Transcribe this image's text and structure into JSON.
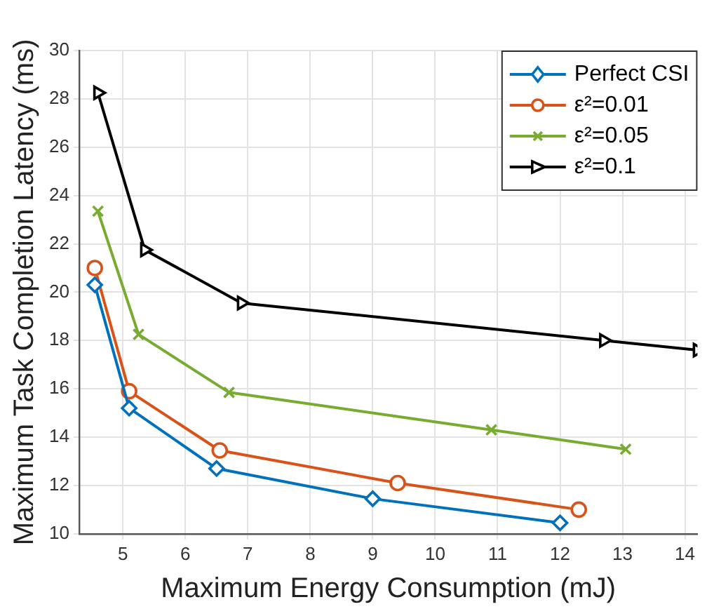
{
  "chart_data": {
    "type": "line",
    "xlabel": "Maximum Energy Consumption (mJ)",
    "ylabel": "Maximum Task Completion Latency (ms)",
    "xlim": [
      4.3,
      14.2
    ],
    "xticks": [
      5,
      6,
      7,
      8,
      9,
      10,
      11,
      12,
      13,
      14
    ],
    "ylim": [
      10,
      30
    ],
    "yticks": [
      10,
      12,
      14,
      16,
      18,
      20,
      22,
      24,
      26,
      28,
      30
    ],
    "grid": true,
    "legend": "top right",
    "line_style": "solid",
    "series": [
      {
        "name": "Perfect CSI",
        "color": "#0072bd",
        "marker": "diamond",
        "x": [
          4.55,
          5.1,
          6.5,
          9,
          12
        ],
        "values": [
          20.3,
          15.2,
          12.7,
          11.45,
          10.45
        ]
      },
      {
        "name": "ε²=0.01",
        "color": "#d95319",
        "marker": "circle",
        "x": [
          4.55,
          5.1,
          6.55,
          9.4,
          12.3
        ],
        "values": [
          21,
          15.9,
          13.45,
          12.1,
          11
        ]
      },
      {
        "name": "ε²=0.05",
        "color": "#77ac30",
        "marker": "cross",
        "x": [
          4.6,
          5.25,
          6.7,
          10.9,
          13.05
        ],
        "values": [
          23.35,
          18.25,
          15.85,
          14.3,
          13.5
        ]
      },
      {
        "name": "ε²=0.1",
        "color": "#000000",
        "marker": "triangle",
        "x": [
          4.6,
          5.35,
          6.9,
          12.7,
          14.2
        ],
        "values": [
          28.25,
          21.75,
          19.55,
          18,
          17.6
        ]
      }
    ]
  }
}
